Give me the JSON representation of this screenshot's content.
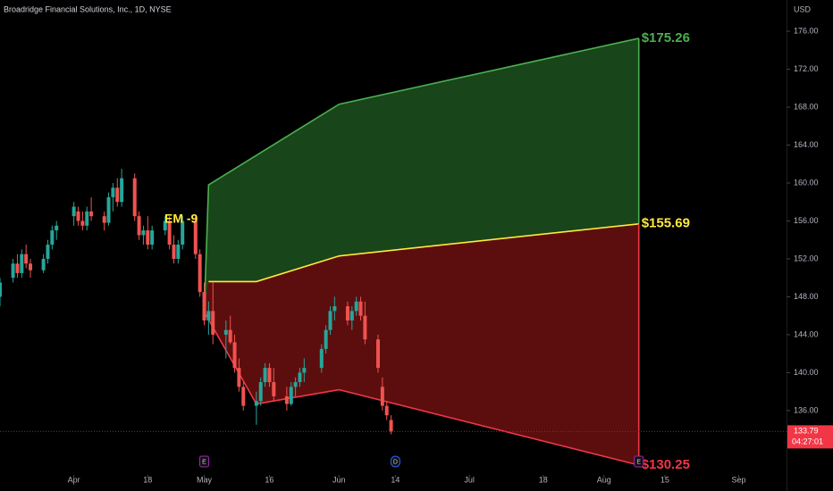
{
  "chart_data": {
    "type": "candlestick",
    "title": "Broadridge Financial Solutions, Inc., 1D, NYSE",
    "currency": "USD",
    "up_color": "#26a69a",
    "down_color": "#ef5350",
    "grid": false,
    "xlim": [
      "03-15",
      "09-12"
    ],
    "ylim": [
      129.4,
      179.3
    ],
    "xticks": [
      {
        "value": "04-01",
        "label": "Apr"
      },
      {
        "value": "04-18",
        "label": "18"
      },
      {
        "value": "05-01",
        "label": "May"
      },
      {
        "value": "05-16",
        "label": "16"
      },
      {
        "value": "06-01",
        "label": "Jun"
      },
      {
        "value": "06-14",
        "label": "14"
      },
      {
        "value": "07-01",
        "label": "Jul"
      },
      {
        "value": "07-18",
        "label": "18"
      },
      {
        "value": "08-01",
        "label": "Aug"
      },
      {
        "value": "08-15",
        "label": "15"
      },
      {
        "value": "09-01",
        "label": "Sep"
      }
    ],
    "yticks": [
      {
        "value": 136,
        "label": "136.00"
      },
      {
        "value": 140,
        "label": "140.00"
      },
      {
        "value": 144,
        "label": "144.00"
      },
      {
        "value": 148,
        "label": "148.00"
      },
      {
        "value": 152,
        "label": "152.00"
      },
      {
        "value": 156,
        "label": "156.00"
      },
      {
        "value": 160,
        "label": "160.00"
      },
      {
        "value": 164,
        "label": "164.00"
      },
      {
        "value": 168,
        "label": "168.00"
      },
      {
        "value": 172,
        "label": "172.00"
      },
      {
        "value": 176,
        "label": "176.00"
      }
    ],
    "x": [
      "03-15",
      "03-18",
      "03-19",
      "03-20",
      "03-21",
      "03-22",
      "03-25",
      "03-26",
      "03-27",
      "03-28",
      "04-01",
      "04-02",
      "04-03",
      "04-04",
      "04-05",
      "04-08",
      "04-09",
      "04-10",
      "04-11",
      "04-12",
      "04-15",
      "04-16",
      "04-17",
      "04-18",
      "04-19",
      "04-22",
      "04-23",
      "04-24",
      "04-25",
      "04-26",
      "04-29",
      "04-30",
      "05-01",
      "05-02",
      "05-03",
      "05-06",
      "05-07",
      "05-08",
      "05-09",
      "05-10",
      "05-13",
      "05-14",
      "05-15",
      "05-16",
      "05-17",
      "05-20",
      "05-21",
      "05-22",
      "05-23",
      "05-24",
      "05-28",
      "05-29",
      "05-30",
      "05-31",
      "06-03",
      "06-04",
      "06-05",
      "06-06",
      "06-07",
      "06-10",
      "06-11",
      "06-12",
      "06-13"
    ],
    "open": [
      148,
      150,
      151.5,
      150.5,
      152.5,
      151.5,
      150.8,
      152,
      153.5,
      155,
      156.5,
      157,
      156,
      155.5,
      157,
      156.5,
      155.8,
      158.5,
      159.5,
      158,
      160.5,
      156.5,
      154.5,
      155,
      153.5,
      155,
      156,
      153.5,
      152,
      153.5,
      156,
      152.5,
      148.5,
      145.5,
      146.5,
      144,
      144.5,
      143.2,
      140.5,
      138.5,
      136.5,
      137,
      139,
      140.5,
      139,
      137.5,
      136.7,
      138.5,
      139,
      140,
      140.5,
      142.5,
      144.5,
      146.5,
      147,
      145.5,
      146.5,
      147.5,
      146,
      143.5,
      138.5,
      136.5,
      135
    ],
    "high": [
      150,
      152,
      152.5,
      153,
      153.5,
      152,
      152.5,
      154,
      155.5,
      156,
      158,
      157.5,
      157,
      157.5,
      158.5,
      157,
      159,
      160,
      160.5,
      161.5,
      161,
      157,
      155.5,
      156.5,
      155.5,
      156.5,
      156.5,
      154.5,
      154,
      156.5,
      156.5,
      153,
      149.5,
      147.5,
      149.5,
      145.5,
      146,
      144,
      141.5,
      139,
      138,
      139.5,
      141,
      141,
      140.5,
      138.5,
      139,
      139.5,
      140.5,
      141.5,
      143,
      145,
      147,
      148,
      147.5,
      147,
      148,
      148,
      147.5,
      144,
      139.5,
      137,
      135.5
    ],
    "low": [
      147,
      149.5,
      150,
      150,
      151,
      150,
      150.5,
      151.5,
      153,
      154,
      155.5,
      155.5,
      155,
      155,
      156,
      155,
      155.5,
      157,
      157.5,
      157.5,
      156,
      154,
      153.5,
      153,
      153,
      154.5,
      153,
      151.5,
      151.5,
      153,
      152,
      148,
      145,
      144,
      143,
      141.5,
      143,
      140,
      138,
      136,
      134.5,
      136.5,
      138.5,
      138.5,
      137,
      136,
      136.5,
      137.5,
      138.5,
      139,
      140,
      142,
      144,
      145.5,
      145,
      144.5,
      146,
      145.5,
      143,
      140,
      136,
      135,
      133.5
    ],
    "close": [
      149.5,
      151.5,
      150.5,
      152.5,
      151.5,
      150.8,
      152,
      153.5,
      155,
      155.5,
      157.5,
      156,
      155.5,
      157,
      156.5,
      155.8,
      158.5,
      159.5,
      158,
      160.5,
      156.5,
      154.5,
      155,
      153.5,
      155,
      156,
      153.5,
      152,
      153.5,
      156,
      152.5,
      148.5,
      145.5,
      146.5,
      144,
      144.5,
      143.2,
      140.5,
      138.5,
      136.5,
      137,
      139,
      140.5,
      139,
      137.5,
      136.7,
      138.5,
      139,
      140,
      140.5,
      142.5,
      144.5,
      146.5,
      147,
      145.5,
      146.5,
      147.5,
      146,
      143.5,
      140.5,
      136.5,
      135.5,
      133.8
    ],
    "annotation": "EM -9",
    "projection": {
      "upper": {
        "color": "#4caf50",
        "x": [
          "05-01",
          "05-02",
          "06-01",
          "08-09"
        ],
        "values": [
          146.4,
          159.8,
          168.3,
          175.26
        ],
        "value_labels": [
          null,
          null,
          null,
          "$175.26"
        ]
      },
      "middle": {
        "color": "#ffeb3b",
        "x": [
          "05-02",
          "05-13",
          "06-01",
          "08-09"
        ],
        "values": [
          149.6,
          149.6,
          152.3,
          155.69
        ],
        "value_labels": [
          null,
          null,
          null,
          "$155.69"
        ]
      },
      "lower": {
        "color": "#f23645",
        "x": [
          "05-01",
          "05-13",
          "06-01",
          "08-09"
        ],
        "values": [
          146.4,
          136.7,
          138.2,
          130.25
        ],
        "value_labels": [
          null,
          null,
          null,
          "$130.25"
        ]
      }
    },
    "last_price": 133.79,
    "countdown": "04:27:01",
    "events": [
      {
        "x": "05-01",
        "label": "E"
      },
      {
        "x": "06-14",
        "label": "D"
      },
      {
        "x": "08-09",
        "label": "E"
      }
    ]
  }
}
